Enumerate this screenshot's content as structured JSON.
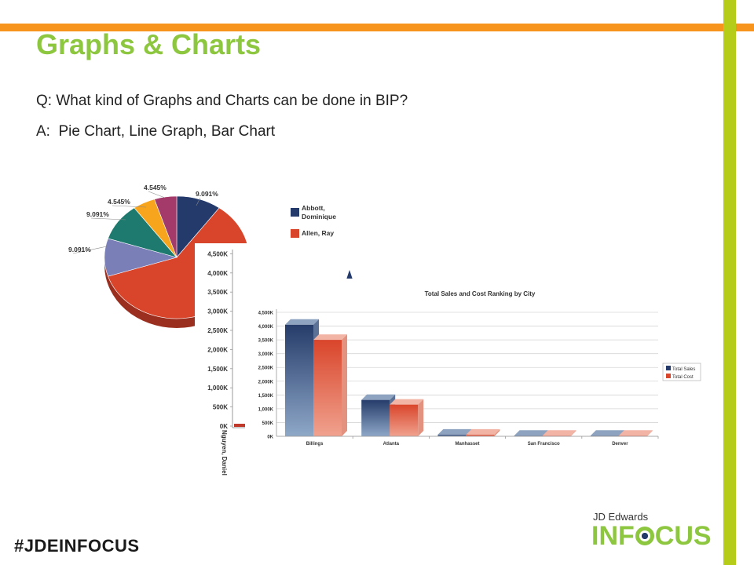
{
  "slide": {
    "title": "Graphs & Charts",
    "question": "Q: What kind of Graphs and Charts can be done in BIP?",
    "answer": "A:  Pie Chart, Line Graph, Bar Chart",
    "hashtag": "#JDEINFOCUS"
  },
  "logo": {
    "top": "JD Edwards",
    "main_part1": "INF",
    "main_part2": "CUS"
  },
  "colors": {
    "orange": "#f7941d",
    "green": "#b5cc18",
    "title_green": "#8dc63f",
    "navy": "#233a6b",
    "red": "#d9452b"
  },
  "chart_data": [
    {
      "type": "pie",
      "labels_shown": [
        "9.091%",
        "4.545%",
        "4.545%",
        "9.091%",
        "9.091%"
      ],
      "legend": [
        "Abbott, Dominique",
        "Allen, Ray"
      ]
    },
    {
      "type": "bar",
      "partial": true,
      "yticks": [
        "0K",
        "500K",
        "1,000K",
        "1,500K",
        "2,000K",
        "2,500K",
        "3,000K",
        "3,500K",
        "4,000K",
        "4,500K"
      ],
      "xlabel_visible": "Nguyen, Daniel"
    },
    {
      "type": "bar",
      "title": "Total Sales and Cost Ranking by City",
      "categories": [
        "Billings",
        "Atlanta",
        "Manhasset",
        "San Francisco",
        "Denver"
      ],
      "series": [
        {
          "name": "Total Sales",
          "values": [
            4050,
            1320,
            60,
            20,
            20
          ]
        },
        {
          "name": "Total Cost",
          "values": [
            3500,
            1150,
            60,
            20,
            20
          ]
        }
      ],
      "yticks": [
        "0K",
        "500K",
        "1,000K",
        "1,500K",
        "2,000K",
        "2,500K",
        "3,000K",
        "3,500K",
        "4,000K",
        "4,500K"
      ],
      "ylim": [
        0,
        4500
      ],
      "grid": true,
      "legend_position": "right"
    }
  ]
}
